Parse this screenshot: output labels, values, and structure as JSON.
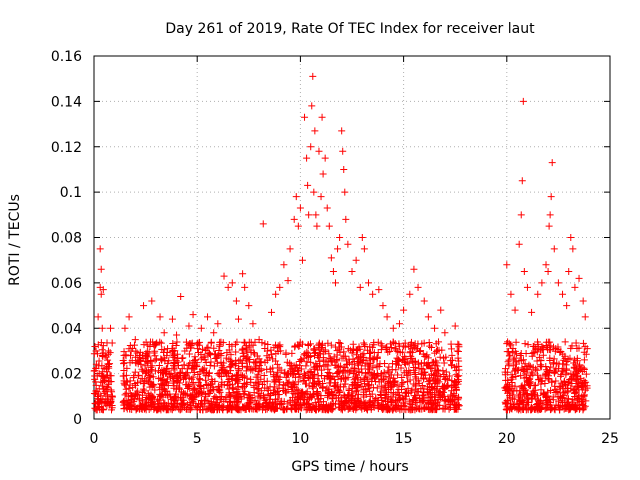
{
  "chart_data": {
    "type": "scatter",
    "title": "Day 261 of 2019, Rate Of TEC Index for receiver laut",
    "xlabel": "GPS time / hours",
    "ylabel": "ROTI / TECUs",
    "xlim": [
      0,
      25
    ],
    "ylim": [
      0,
      0.16
    ],
    "xticks": [
      0,
      5,
      10,
      15,
      20,
      25
    ],
    "xtick_labels": [
      "0",
      "5",
      "10",
      "15",
      "20",
      "25"
    ],
    "yticks": [
      0,
      0.02,
      0.04,
      0.06,
      0.08,
      0.1,
      0.12,
      0.14,
      0.16
    ],
    "ytick_labels": [
      "0",
      "0.02",
      "0.04",
      "0.06",
      "0.08",
      "0.1",
      "0.12",
      "0.14",
      "0.16"
    ],
    "grid": true,
    "marker": "+",
    "color": "#ff0000",
    "series": [
      {
        "name": "ROTI",
        "points": [
          [
            0.1,
            0.03
          ],
          [
            0.15,
            0.012
          ],
          [
            0.2,
            0.045
          ],
          [
            0.25,
            0.02
          ],
          [
            0.3,
            0.058
          ],
          [
            0.3,
            0.075
          ],
          [
            0.35,
            0.055
          ],
          [
            0.35,
            0.066
          ],
          [
            0.4,
            0.04
          ],
          [
            0.4,
            0.028
          ],
          [
            0.45,
            0.057
          ],
          [
            0.5,
            0.018
          ],
          [
            0.2,
            0.009
          ],
          [
            0.6,
            0.022
          ],
          [
            0.7,
            0.03
          ],
          [
            0.8,
            0.04
          ],
          [
            0.85,
            0.012
          ],
          [
            1.5,
            0.04
          ],
          [
            1.7,
            0.045
          ],
          [
            1.8,
            0.03
          ],
          [
            2.0,
            0.035
          ],
          [
            2.2,
            0.028
          ],
          [
            2.4,
            0.05
          ],
          [
            2.5,
            0.02
          ],
          [
            2.8,
            0.052
          ],
          [
            3.0,
            0.033
          ],
          [
            3.2,
            0.045
          ],
          [
            3.4,
            0.038
          ],
          [
            3.5,
            0.022
          ],
          [
            3.8,
            0.044
          ],
          [
            4.0,
            0.037
          ],
          [
            4.2,
            0.054
          ],
          [
            4.4,
            0.03
          ],
          [
            4.6,
            0.041
          ],
          [
            4.8,
            0.046
          ],
          [
            5.0,
            0.033
          ],
          [
            5.2,
            0.04
          ],
          [
            5.5,
            0.045
          ],
          [
            5.8,
            0.038
          ],
          [
            6.0,
            0.042
          ],
          [
            6.3,
            0.063
          ],
          [
            6.5,
            0.058
          ],
          [
            6.7,
            0.06
          ],
          [
            6.9,
            0.052
          ],
          [
            7.0,
            0.044
          ],
          [
            7.2,
            0.064
          ],
          [
            7.3,
            0.058
          ],
          [
            7.5,
            0.05
          ],
          [
            7.7,
            0.042
          ],
          [
            8.0,
            0.035
          ],
          [
            8.2,
            0.086
          ],
          [
            8.4,
            0.03
          ],
          [
            8.6,
            0.047
          ],
          [
            8.8,
            0.055
          ],
          [
            9.0,
            0.058
          ],
          [
            9.2,
            0.068
          ],
          [
            9.4,
            0.061
          ],
          [
            9.5,
            0.075
          ],
          [
            9.7,
            0.088
          ],
          [
            9.8,
            0.098
          ],
          [
            9.9,
            0.085
          ],
          [
            10.0,
            0.093
          ],
          [
            10.1,
            0.07
          ],
          [
            10.2,
            0.133
          ],
          [
            10.3,
            0.115
          ],
          [
            10.35,
            0.103
          ],
          [
            10.4,
            0.09
          ],
          [
            10.5,
            0.12
          ],
          [
            10.55,
            0.138
          ],
          [
            10.6,
            0.151
          ],
          [
            10.65,
            0.1
          ],
          [
            10.7,
            0.127
          ],
          [
            10.75,
            0.09
          ],
          [
            10.8,
            0.085
          ],
          [
            10.9,
            0.118
          ],
          [
            11.0,
            0.098
          ],
          [
            11.05,
            0.133
          ],
          [
            11.1,
            0.108
          ],
          [
            11.2,
            0.115
          ],
          [
            11.3,
            0.093
          ],
          [
            11.4,
            0.085
          ],
          [
            11.5,
            0.071
          ],
          [
            11.6,
            0.065
          ],
          [
            11.7,
            0.06
          ],
          [
            11.8,
            0.075
          ],
          [
            11.9,
            0.08
          ],
          [
            12.0,
            0.127
          ],
          [
            12.05,
            0.118
          ],
          [
            12.1,
            0.11
          ],
          [
            12.15,
            0.1
          ],
          [
            12.2,
            0.088
          ],
          [
            12.3,
            0.077
          ],
          [
            12.5,
            0.065
          ],
          [
            12.7,
            0.07
          ],
          [
            12.9,
            0.058
          ],
          [
            13.0,
            0.08
          ],
          [
            13.1,
            0.075
          ],
          [
            13.3,
            0.06
          ],
          [
            13.5,
            0.055
          ],
          [
            13.8,
            0.057
          ],
          [
            14.0,
            0.05
          ],
          [
            14.2,
            0.045
          ],
          [
            14.5,
            0.04
          ],
          [
            14.8,
            0.042
          ],
          [
            15.0,
            0.048
          ],
          [
            15.3,
            0.055
          ],
          [
            15.5,
            0.066
          ],
          [
            15.7,
            0.058
          ],
          [
            16.0,
            0.052
          ],
          [
            16.2,
            0.045
          ],
          [
            16.5,
            0.04
          ],
          [
            16.8,
            0.048
          ],
          [
            17.0,
            0.038
          ],
          [
            17.3,
            0.033
          ],
          [
            17.5,
            0.041
          ],
          [
            17.6,
            0.03
          ],
          [
            20.0,
            0.068
          ],
          [
            20.2,
            0.055
          ],
          [
            20.4,
            0.048
          ],
          [
            20.6,
            0.077
          ],
          [
            20.7,
            0.09
          ],
          [
            20.75,
            0.105
          ],
          [
            20.8,
            0.14
          ],
          [
            20.85,
            0.065
          ],
          [
            21.0,
            0.058
          ],
          [
            21.2,
            0.047
          ],
          [
            21.5,
            0.055
          ],
          [
            21.7,
            0.06
          ],
          [
            21.9,
            0.068
          ],
          [
            22.0,
            0.065
          ],
          [
            22.05,
            0.085
          ],
          [
            22.1,
            0.09
          ],
          [
            22.15,
            0.098
          ],
          [
            22.2,
            0.113
          ],
          [
            22.3,
            0.075
          ],
          [
            22.5,
            0.06
          ],
          [
            22.7,
            0.055
          ],
          [
            22.9,
            0.05
          ],
          [
            23.0,
            0.065
          ],
          [
            23.1,
            0.08
          ],
          [
            23.2,
            0.075
          ],
          [
            23.3,
            0.058
          ],
          [
            23.5,
            0.062
          ],
          [
            23.7,
            0.052
          ],
          [
            23.8,
            0.045
          ]
        ],
        "dense_band": {
          "note": "dense scatter cloud of ROTI samples approximately 0.005–0.035 TECU",
          "segments": [
            [
              0.0,
              0.9
            ],
            [
              1.4,
              17.7
            ],
            [
              19.9,
              23.9
            ]
          ],
          "ymin": 0.004,
          "ymax": 0.034
        }
      }
    ]
  }
}
